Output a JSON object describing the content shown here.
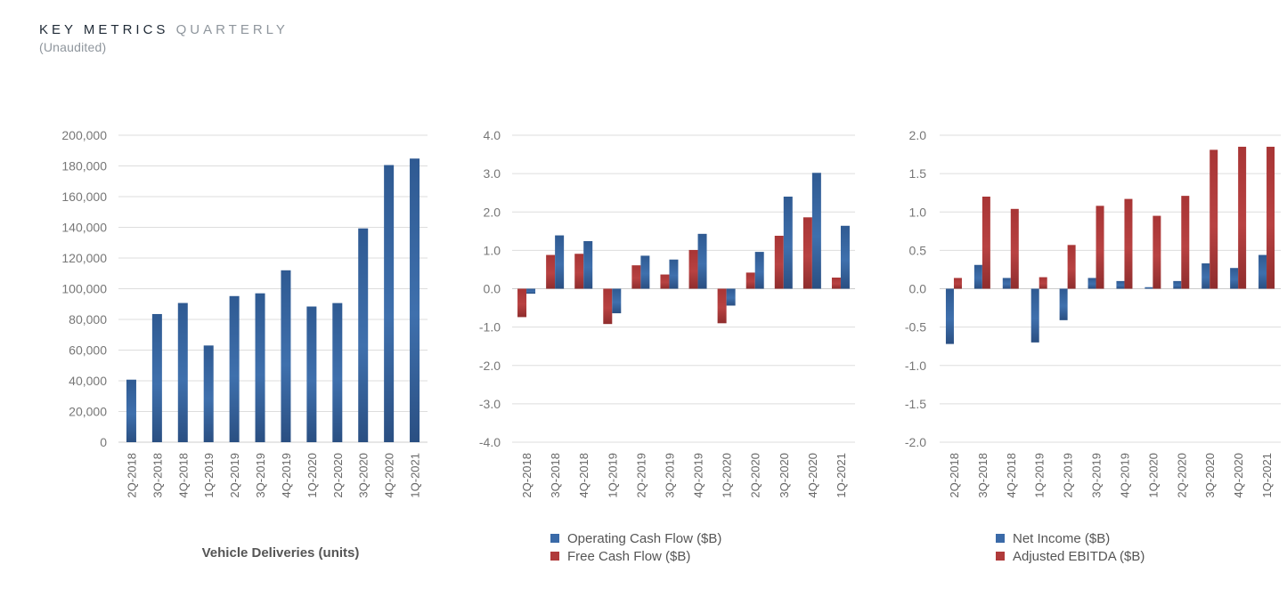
{
  "header": {
    "title": "KEY METRICS",
    "title_suffix": "QUARTERLY",
    "subtitle": "(Unaudited)"
  },
  "colors": {
    "blue": "#3a6aa8",
    "blue_dark": "#2c5286",
    "red": "#b03a3a",
    "red_dark": "#8c2a2a",
    "grid": "#dddddd",
    "zero_line": "#cccccc"
  },
  "chart_data": [
    {
      "type": "bar",
      "title": "",
      "xlabel": "Vehicle Deliveries (units)",
      "ylabel": "",
      "categories": [
        "2Q-2018",
        "3Q-2018",
        "4Q-2018",
        "1Q-2019",
        "2Q-2019",
        "3Q-2019",
        "4Q-2019",
        "1Q-2020",
        "2Q-2020",
        "3Q-2020",
        "4Q-2020",
        "1Q-2021"
      ],
      "ylim": [
        0,
        200000
      ],
      "yticks": [
        0,
        20000,
        40000,
        60000,
        80000,
        100000,
        120000,
        140000,
        160000,
        180000,
        200000
      ],
      "ytick_labels": [
        "0",
        "20,000",
        "40,000",
        "60,000",
        "80,000",
        "100,000",
        "120,000",
        "140,000",
        "160,000",
        "180,000",
        "200,000"
      ],
      "series": [
        {
          "name": "Vehicle Deliveries (units)",
          "color": "blue",
          "values": [
            40740,
            83500,
            90700,
            63000,
            95200,
            97000,
            112000,
            88400,
            90650,
            139300,
            180570,
            184800
          ]
        }
      ],
      "legend": []
    },
    {
      "type": "bar",
      "title": "",
      "xlabel": "",
      "ylabel": "",
      "categories": [
        "2Q-2018",
        "3Q-2018",
        "4Q-2018",
        "1Q-2019",
        "2Q-2019",
        "3Q-2019",
        "4Q-2019",
        "1Q-2020",
        "2Q-2020",
        "3Q-2020",
        "4Q-2020",
        "1Q-2021"
      ],
      "ylim": [
        -4,
        4
      ],
      "yticks": [
        -4,
        -3,
        -2,
        -1,
        0,
        1,
        2,
        3,
        4
      ],
      "ytick_labels": [
        "-4.0",
        "-3.0",
        "-2.0",
        "-1.0",
        "0.0",
        "1.0",
        "2.0",
        "3.0",
        "4.0"
      ],
      "series": [
        {
          "name": "Free Cash Flow ($B)",
          "color": "red",
          "values": [
            -0.74,
            0.88,
            0.91,
            -0.92,
            0.61,
            0.37,
            1.01,
            -0.9,
            0.42,
            1.38,
            1.86,
            0.29
          ]
        },
        {
          "name": "Operating Cash Flow ($B)",
          "color": "blue",
          "values": [
            -0.13,
            1.39,
            1.24,
            -0.64,
            0.86,
            0.76,
            1.43,
            -0.44,
            0.96,
            2.4,
            3.02,
            1.64
          ]
        }
      ],
      "legend": [
        {
          "label": "Operating Cash Flow ($B)",
          "color": "blue"
        },
        {
          "label": "Free Cash Flow ($B)",
          "color": "red"
        }
      ]
    },
    {
      "type": "bar",
      "title": "",
      "xlabel": "",
      "ylabel": "",
      "categories": [
        "2Q-2018",
        "3Q-2018",
        "4Q-2018",
        "1Q-2019",
        "2Q-2019",
        "3Q-2019",
        "4Q-2019",
        "1Q-2020",
        "2Q-2020",
        "3Q-2020",
        "4Q-2020",
        "1Q-2021"
      ],
      "ylim": [
        -2,
        2
      ],
      "yticks": [
        -2,
        -1.5,
        -1,
        -0.5,
        0,
        0.5,
        1,
        1.5,
        2
      ],
      "ytick_labels": [
        "-2.0",
        "-1.5",
        "-1.0",
        "-0.5",
        "0.0",
        "0.5",
        "1.0",
        "1.5",
        "2.0"
      ],
      "series": [
        {
          "name": "Net Income ($B)",
          "color": "blue",
          "values": [
            -0.72,
            0.31,
            0.14,
            -0.7,
            -0.41,
            0.14,
            0.1,
            0.02,
            0.1,
            0.33,
            0.27,
            0.44
          ]
        },
        {
          "name": "Adjusted EBITDA ($B)",
          "color": "red",
          "values": [
            0.14,
            1.2,
            1.04,
            0.15,
            0.57,
            1.08,
            1.17,
            0.95,
            1.21,
            1.81,
            1.85,
            1.85
          ]
        }
      ],
      "legend": [
        {
          "label": "Net Income ($B)",
          "color": "blue"
        },
        {
          "label": "Adjusted EBITDA ($B)",
          "color": "red"
        }
      ]
    }
  ]
}
